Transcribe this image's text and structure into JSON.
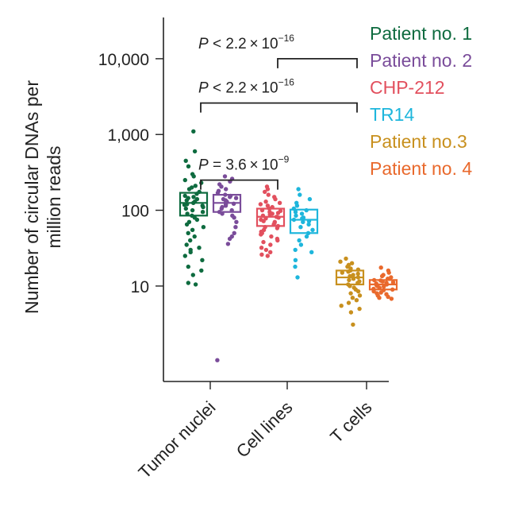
{
  "chart_data": {
    "type": "box-strip",
    "title": "",
    "ylabel_lines": [
      "Number of circular DNAs per",
      "million reads"
    ],
    "yscale": "log10",
    "ylim": [
      0.55,
      35000
    ],
    "yticks": [
      10,
      100,
      1000,
      10000
    ],
    "ytick_labels": [
      "10",
      "100",
      "1,000",
      "10,000"
    ],
    "categories": [
      "Tumor nuclei",
      "Cell lines",
      "T cells"
    ],
    "series": [
      {
        "name": "Patient no. 1",
        "color": "#0e6b3f",
        "category": "Tumor nuclei",
        "box": {
          "q1": 85,
          "median": 125,
          "q3": 170
        },
        "points": [
          1100,
          600,
          450,
          380,
          300,
          280,
          250,
          230,
          210,
          200,
          190,
          175,
          165,
          155,
          150,
          145,
          140,
          135,
          130,
          125,
          120,
          118,
          115,
          110,
          105,
          100,
          95,
          90,
          85,
          80,
          75,
          70,
          65,
          60,
          55,
          50,
          45,
          40,
          35,
          32,
          30,
          28,
          25,
          22,
          18,
          16,
          14,
          11,
          10.5
        ]
      },
      {
        "name": "Patient no. 2",
        "color": "#7a4c9a",
        "category": "Tumor nuclei",
        "box": {
          "q1": 95,
          "median": 125,
          "q3": 160
        },
        "points": [
          280,
          260,
          240,
          220,
          205,
          190,
          180,
          170,
          160,
          155,
          150,
          145,
          140,
          135,
          130,
          125,
          122,
          120,
          115,
          110,
          105,
          100,
          95,
          90,
          85,
          80,
          70,
          60,
          50,
          45,
          42,
          36,
          1.05
        ]
      },
      {
        "name": "CHP-212",
        "color": "#e2505e",
        "category": "Cell lines",
        "box": {
          "q1": 62,
          "median": 82,
          "q3": 105
        },
        "points": [
          205,
          190,
          175,
          160,
          150,
          140,
          130,
          125,
          120,
          115,
          110,
          105,
          100,
          98,
          95,
          92,
          90,
          88,
          85,
          82,
          80,
          78,
          75,
          72,
          70,
          68,
          65,
          62,
          60,
          58,
          55,
          52,
          50,
          48,
          45,
          42,
          40,
          38,
          35,
          32,
          30,
          28,
          26,
          25
        ]
      },
      {
        "name": "TR14",
        "color": "#1eb6dc",
        "category": "Cell lines",
        "box": {
          "q1": 50,
          "median": 75,
          "q3": 102
        },
        "points": [
          190,
          160,
          140,
          125,
          115,
          105,
          100,
          95,
          90,
          85,
          80,
          78,
          75,
          72,
          70,
          65,
          60,
          55,
          50,
          45,
          40,
          35,
          30,
          28,
          22,
          18,
          13
        ]
      },
      {
        "name": "Patient no.3",
        "color": "#c8901e",
        "category": "T cells",
        "box": {
          "q1": 10.5,
          "median": 13,
          "q3": 16
        },
        "points": [
          23,
          21,
          20,
          19,
          18,
          17,
          16.5,
          16,
          15.5,
          15,
          14.5,
          14,
          13.5,
          13,
          12.5,
          12,
          11.5,
          11,
          10.5,
          10,
          9.5,
          9,
          8.5,
          8,
          7.5,
          7,
          6.5,
          6,
          5.5,
          5,
          4.5,
          3.1
        ]
      },
      {
        "name": "Patient no. 4",
        "color": "#e9692c",
        "category": "T cells",
        "box": {
          "q1": 9,
          "median": 10.5,
          "q3": 12
        },
        "points": [
          17.5,
          16,
          15,
          14,
          13.5,
          13,
          12.5,
          12,
          11.8,
          11.5,
          11.2,
          11,
          10.8,
          10.5,
          10.3,
          10,
          9.8,
          9.5,
          9.2,
          9,
          8.8,
          8.5,
          8.2,
          8,
          7.8,
          7.5,
          7.2,
          7,
          6.8
        ]
      }
    ],
    "legend": {
      "placement": "right",
      "entries": [
        {
          "label": "Patient no. 1",
          "color": "#0e6b3f"
        },
        {
          "label": "Patient no. 2",
          "color": "#7a4c9a"
        },
        {
          "label": "CHP-212",
          "color": "#e2505e"
        },
        {
          "label": "TR14",
          "color": "#1eb6dc"
        },
        {
          "label": "Patient no.3",
          "color": "#c8901e"
        },
        {
          "label": "Patient no. 4",
          "color": "#e9692c"
        }
      ]
    },
    "annotations": [
      {
        "from": "Cell lines",
        "to": "T cells",
        "level": 10000,
        "p_prefix": "P",
        "p_relation": " < 2.2 × 10",
        "p_exponent": "−16"
      },
      {
        "from": "Tumor nuclei",
        "to": "T cells",
        "level": 2600,
        "p_prefix": "P",
        "p_relation": " < 2.2 × 10",
        "p_exponent": "−16"
      },
      {
        "from": "Tumor nuclei",
        "to": "Cell lines",
        "level": 250,
        "p_prefix": "P",
        "p_relation": " = 3.6 × 10",
        "p_exponent": "−9"
      }
    ]
  }
}
